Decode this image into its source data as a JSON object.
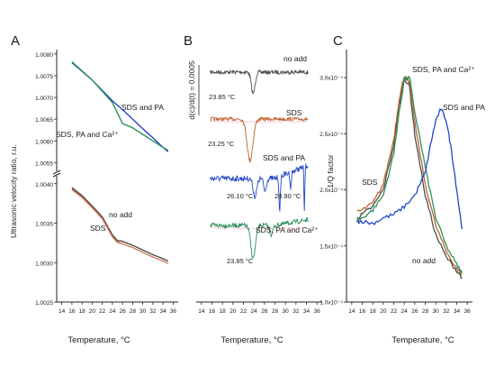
{
  "panels": {
    "A": {
      "label": "A",
      "ylabel": "Ultrasonic velocity ratio, r.u.",
      "xlabel": "Temperature, °C",
      "upper_ticks": [
        "1.0080",
        "1.0075",
        "1.0070",
        "1.0065",
        "1.0060",
        "1.0055"
      ],
      "lower_ticks": [
        "1.0040",
        "1.0035",
        "1.0030",
        "1.0025"
      ],
      "annotations": [
        "SDS and PA",
        "SDS, PA and Ca²⁺",
        "no add",
        "SDS"
      ]
    },
    "B": {
      "label": "B",
      "ylabel": "d(c)/d(t) = 0.0005",
      "xlabel": "Temperature, °C",
      "annotations": [
        "no add",
        "23.85 °C",
        "SDS",
        "23.25 °C",
        "SDS and PA",
        "26.10 °C",
        "28.90 °C",
        "SDS, PA and Ca²⁺",
        "23.85 °C"
      ]
    },
    "C": {
      "label": "C",
      "ylabel": "1/Q factor",
      "xlabel": "Temperature, °C",
      "yticks": [
        "3.0x10⁻⁴",
        "2.5x10⁻⁴",
        "2.0x10⁻⁴",
        "1.5x10⁻⁴",
        "1.0x10⁻⁴"
      ],
      "annotations": [
        "SDS, PA and Ca²⁺",
        "SDS and PA",
        "SDS",
        "no add"
      ]
    }
  },
  "x_ticks": [
    "14",
    "16",
    "18",
    "20",
    "22",
    "24",
    "26",
    "28",
    "30",
    "32",
    "34",
    "36"
  ],
  "colors": {
    "no_add": "#4d4d4d",
    "sds": "#c0622f",
    "sds_pa": "#2146c7",
    "sds_pa_ca": "#2f8f5b",
    "pink": "#f2a7c9"
  },
  "chart_data": [
    {
      "type": "line",
      "panel": "A",
      "xlim": [
        13,
        37
      ],
      "ylim_upper": [
        1.0053,
        1.0081
      ],
      "ylim_lower": [
        1.0025,
        1.0041
      ],
      "series": [
        {
          "name": "SDS and PA",
          "x": [
            16,
            20,
            24,
            26,
            28,
            30,
            32,
            34,
            35
          ],
          "y": [
            1.0078,
            1.0074,
            1.00692,
            1.00672,
            1.0065,
            1.00628,
            1.00607,
            1.00585,
            1.00575
          ]
        },
        {
          "name": "SDS, PA and Ca²⁺",
          "x": [
            16,
            20,
            24,
            25,
            26,
            28,
            30,
            32,
            34,
            35
          ],
          "y": [
            1.00782,
            1.0074,
            1.00688,
            1.00664,
            1.0064,
            1.0063,
            1.00615,
            1.006,
            1.00585,
            1.00578
          ]
        },
        {
          "name": "no add",
          "x": [
            16,
            18,
            20,
            22,
            24,
            25,
            26,
            28,
            30,
            32,
            34,
            35
          ],
          "y": [
            1.00395,
            1.00385,
            1.00372,
            1.00358,
            1.00335,
            1.00328,
            1.00327,
            1.00322,
            1.00316,
            1.0031,
            1.00305,
            1.00302
          ]
        },
        {
          "name": "SDS",
          "x": [
            16,
            18,
            20,
            22,
            24,
            25,
            26,
            28,
            30,
            32,
            34,
            35
          ],
          "y": [
            1.00393,
            1.00383,
            1.0037,
            1.00356,
            1.00333,
            1.00326,
            1.00324,
            1.00319,
            1.00313,
            1.00307,
            1.00302,
            1.00299
          ]
        }
      ]
    },
    {
      "type": "line",
      "panel": "B",
      "xlim": [
        13,
        37
      ],
      "series": [
        {
          "name": "no add",
          "dip_x": 23.85
        },
        {
          "name": "SDS",
          "dip_x": 23.25
        },
        {
          "name": "SDS and PA",
          "dip_x": [
            26.1,
            28.9
          ]
        },
        {
          "name": "SDS, PA and Ca²⁺",
          "dip_x": 23.85
        }
      ]
    },
    {
      "type": "line",
      "panel": "C",
      "xlim": [
        13,
        37
      ],
      "ylim": [
        0.0001,
        0.000325
      ],
      "series": [
        {
          "name": "no add",
          "x": [
            15,
            16,
            18,
            20,
            22,
            23,
            24,
            25,
            26,
            28,
            30,
            32,
            34,
            35
          ],
          "y": [
            0.000175,
            0.000178,
            0.000185,
            0.0002,
            0.00024,
            0.000275,
            0.0003,
            0.000292,
            0.00025,
            0.000195,
            0.00016,
            0.00014,
            0.000128,
            0.000122
          ]
        },
        {
          "name": "SDS",
          "x": [
            15,
            16,
            18,
            20,
            22,
            23,
            24,
            25,
            26,
            28,
            30,
            32,
            34,
            35
          ],
          "y": [
            0.00018,
            0.000182,
            0.000188,
            0.000205,
            0.000245,
            0.00028,
            0.000302,
            0.000295,
            0.00026,
            0.000205,
            0.000168,
            0.000145,
            0.00013,
            0.000125
          ]
        },
        {
          "name": "SDS, PA and Ca²⁺",
          "x": [
            15,
            16,
            18,
            20,
            22,
            23,
            24,
            25,
            26,
            28,
            30,
            32,
            34,
            35
          ],
          "y": [
            0.000172,
            0.000175,
            0.000182,
            0.000195,
            0.000232,
            0.000268,
            0.000298,
            0.0003,
            0.00027,
            0.00022,
            0.000175,
            0.00015,
            0.000133,
            0.000126
          ]
        },
        {
          "name": "SDS and PA",
          "x": [
            15,
            16,
            18,
            20,
            22,
            24,
            26,
            28,
            29,
            30,
            31,
            32,
            33,
            34,
            35
          ],
          "y": [
            0.000172,
            0.000172,
            0.00017,
            0.000175,
            0.000178,
            0.000185,
            0.000195,
            0.000215,
            0.00024,
            0.000262,
            0.000272,
            0.000262,
            0.000235,
            0.0002,
            0.000165
          ]
        }
      ]
    }
  ]
}
